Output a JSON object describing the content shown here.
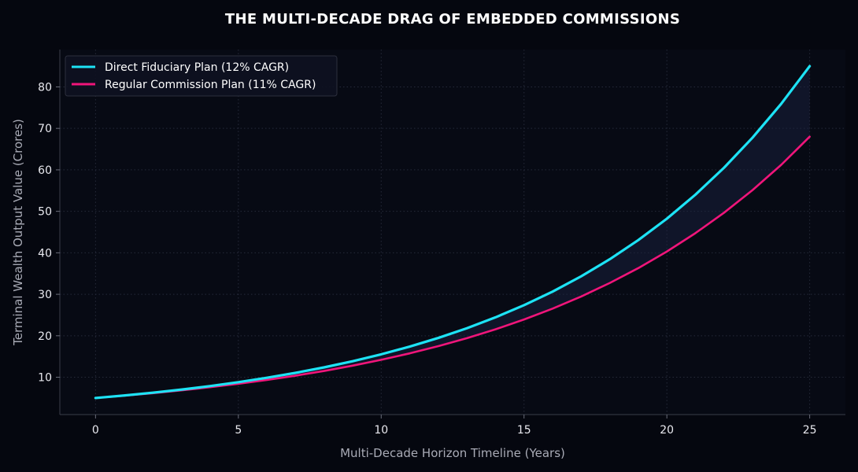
{
  "chart_data": {
    "type": "line",
    "title": "THE MULTI-DECADE DRAG OF EMBEDDED COMMISSIONS",
    "xlabel": "Multi-Decade Horizon Timeline (Years)",
    "ylabel": "Terminal Wealth Output Value (Crores)",
    "xlim": [
      -1.25,
      26.25
    ],
    "ylim": [
      1,
      89
    ],
    "xticks": [
      0,
      5,
      10,
      15,
      20,
      25
    ],
    "yticks": [
      10,
      20,
      30,
      40,
      50,
      60,
      70,
      80
    ],
    "grid": true,
    "legend_position": "top-left",
    "fill_between": true,
    "x": [
      0,
      1,
      2,
      3,
      4,
      5,
      6,
      7,
      8,
      9,
      10,
      11,
      12,
      13,
      14,
      15,
      16,
      17,
      18,
      19,
      20,
      21,
      22,
      23,
      24,
      25
    ],
    "series": [
      {
        "name": "Direct Fiduciary Plan (12% CAGR)",
        "color": "#1de3f5",
        "values": [
          5.0,
          5.6,
          6.27,
          7.02,
          7.87,
          8.81,
          9.87,
          11.05,
          12.38,
          13.87,
          15.53,
          17.39,
          19.48,
          21.82,
          24.44,
          27.37,
          30.65,
          34.33,
          38.45,
          43.07,
          48.23,
          54.02,
          60.5,
          67.77,
          75.9,
          85.0
        ]
      },
      {
        "name": "Regular Commission Plan (11% CAGR)",
        "color": "#f0157a",
        "values": [
          5.0,
          5.55,
          6.16,
          6.84,
          7.59,
          8.43,
          9.35,
          10.38,
          11.52,
          12.79,
          14.2,
          15.76,
          17.49,
          19.42,
          21.55,
          23.92,
          26.55,
          29.47,
          32.72,
          36.31,
          40.31,
          44.74,
          49.66,
          55.13,
          61.19,
          68.0
        ]
      }
    ]
  }
}
